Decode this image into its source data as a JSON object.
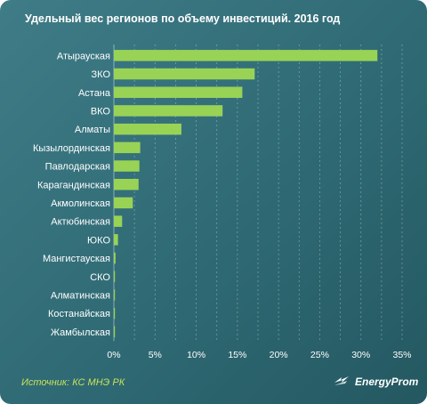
{
  "title": "Удельный вес регионов по объему инвестиций.  2016 год",
  "source": "Источник: КС МНЭ РК",
  "brand": "EnergyProm",
  "colors": {
    "bar": "#99d356",
    "background": "#2f6a74",
    "text": "#ffffff",
    "source": "#c9e15a"
  },
  "chart_data": {
    "type": "bar",
    "orientation": "horizontal",
    "categories": [
      "Атырауская",
      "ЗКО",
      "Астана",
      "ВКО",
      "Алматы",
      "Кызылординская",
      "Павлодарская",
      "Карагандинская",
      "Акмолинская",
      "Актюбинская",
      "ЮКО",
      "Мангистауская",
      "СКО",
      "Алматинская",
      "Костанайская",
      "Жамбылская"
    ],
    "values": [
      32,
      17.1,
      15.6,
      13.2,
      8.2,
      3.2,
      3.1,
      3.0,
      2.3,
      1.0,
      0.5,
      0.2,
      0.1,
      0.1,
      0.1,
      0.1
    ],
    "unit": "%",
    "xlim": [
      0,
      35
    ],
    "xticks": [
      "0%",
      "5%",
      "10%",
      "15%",
      "20%",
      "25%",
      "30%",
      "35%"
    ],
    "grid": true
  }
}
